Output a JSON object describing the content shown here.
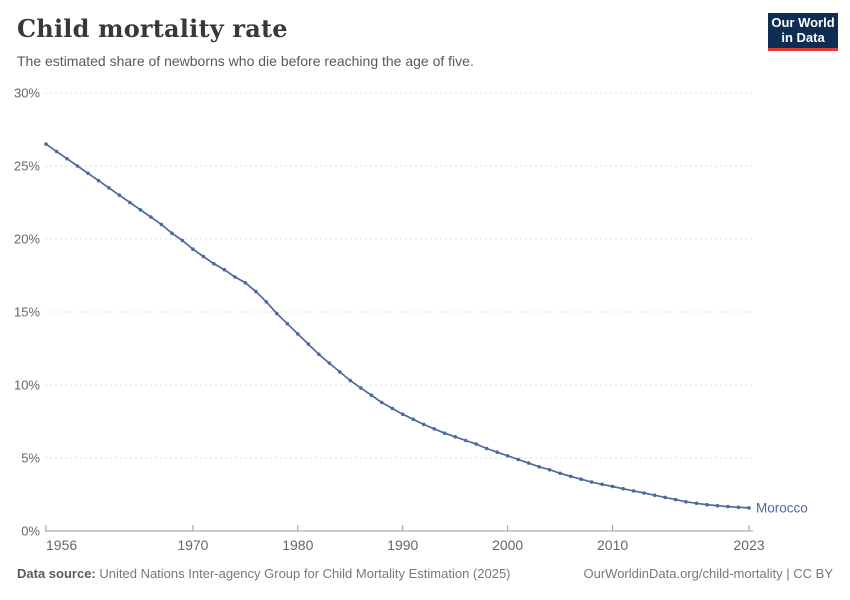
{
  "header": {
    "title": "Child mortality rate",
    "subtitle": "The estimated share of newborns who die before reaching the age of five.",
    "logo": {
      "line1": "Our World",
      "line2": "in Data",
      "bg_color": "#0d2d52",
      "accent_color": "#e23d33"
    }
  },
  "chart_data": {
    "type": "line",
    "title": "Child mortality rate",
    "xlabel": "",
    "ylabel": "",
    "xlim": [
      1956,
      2023
    ],
    "ylim": [
      0,
      30
    ],
    "grid": "horizontal-dashed",
    "legend_position": "end-of-line-label",
    "x_ticks": [
      1956,
      1970,
      1980,
      1990,
      2000,
      2010,
      2023
    ],
    "y_ticks": [
      0,
      5,
      10,
      15,
      20,
      25,
      30
    ],
    "y_tick_suffix": "%",
    "x": [
      1956,
      1957,
      1958,
      1959,
      1960,
      1961,
      1962,
      1963,
      1964,
      1965,
      1966,
      1967,
      1968,
      1969,
      1970,
      1971,
      1972,
      1973,
      1974,
      1975,
      1976,
      1977,
      1978,
      1979,
      1980,
      1981,
      1982,
      1983,
      1984,
      1985,
      1986,
      1987,
      1988,
      1989,
      1990,
      1991,
      1992,
      1993,
      1994,
      1995,
      1996,
      1997,
      1998,
      1999,
      2000,
      2001,
      2002,
      2003,
      2004,
      2005,
      2006,
      2007,
      2008,
      2009,
      2010,
      2011,
      2012,
      2013,
      2014,
      2015,
      2016,
      2017,
      2018,
      2019,
      2020,
      2021,
      2022,
      2023
    ],
    "series": [
      {
        "name": "Morocco",
        "color": "#4C6A9C",
        "values": [
          26.5,
          26.0,
          25.5,
          25.0,
          24.5,
          24.0,
          23.5,
          23.0,
          22.5,
          22.0,
          21.5,
          21.0,
          20.4,
          19.9,
          19.3,
          18.8,
          18.3,
          17.9,
          17.4,
          17.0,
          16.4,
          15.7,
          14.9,
          14.2,
          13.5,
          12.8,
          12.1,
          11.5,
          10.9,
          10.3,
          9.8,
          9.3,
          8.8,
          8.4,
          8.0,
          7.65,
          7.3,
          7.0,
          6.7,
          6.45,
          6.2,
          5.95,
          5.65,
          5.4,
          5.15,
          4.9,
          4.65,
          4.4,
          4.2,
          3.95,
          3.75,
          3.55,
          3.35,
          3.2,
          3.05,
          2.9,
          2.75,
          2.6,
          2.45,
          2.3,
          2.15,
          2.0,
          1.9,
          1.8,
          1.73,
          1.67,
          1.62,
          1.58
        ]
      }
    ],
    "colors": {
      "gridline": "#dcdcdc",
      "axis": "#999999",
      "tick_label": "#666666"
    }
  },
  "footer": {
    "source_label": "Data source:",
    "source_text": "United Nations Inter-agency Group for Child Mortality Estimation (2025)",
    "link_text": "OurWorldinData.org/child-mortality | CC BY"
  }
}
